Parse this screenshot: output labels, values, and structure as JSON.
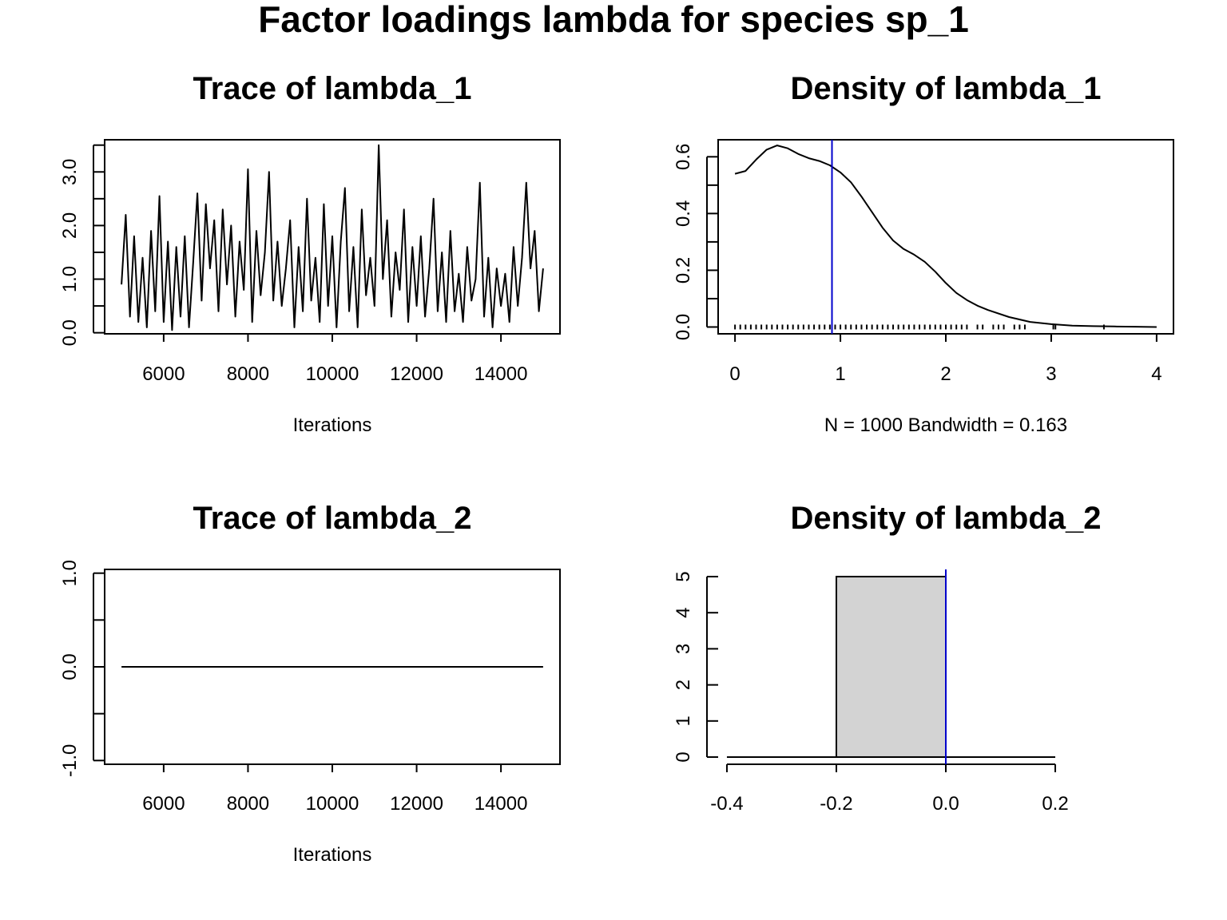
{
  "main_title": "Factor loadings lambda for species  sp_1",
  "colors": {
    "line": "#000000",
    "mean_line": "#0000cc",
    "bar_fill": "#d3d3d3"
  },
  "chart_data": [
    {
      "id": "trace-lambda-1",
      "type": "line",
      "title": "Trace of lambda_1",
      "xlabel": "Iterations",
      "ylabel": "",
      "xlim": [
        4600,
        15400
      ],
      "ylim": [
        -0.02,
        3.6
      ],
      "xticks": [
        6000,
        8000,
        10000,
        12000,
        14000
      ],
      "yticks": [
        0.0,
        0.5,
        1.0,
        1.5,
        2.0,
        2.5,
        3.0,
        3.5
      ],
      "ytick_labels": [
        "0.0",
        "",
        "1.0",
        "",
        "2.0",
        "",
        "3.0",
        ""
      ],
      "grid": false,
      "series": [
        {
          "x": [
            5000,
            5100,
            5200,
            5300,
            5400,
            5500,
            5600,
            5700,
            5800,
            5900,
            6000,
            6100,
            6200,
            6300,
            6400,
            6500,
            6600,
            6700,
            6800,
            6900,
            7000,
            7100,
            7200,
            7300,
            7400,
            7500,
            7600,
            7700,
            7800,
            7900,
            8000,
            8100,
            8200,
            8300,
            8400,
            8500,
            8600,
            8700,
            8800,
            8900,
            9000,
            9100,
            9200,
            9300,
            9400,
            9500,
            9600,
            9700,
            9800,
            9900,
            10000,
            10100,
            10200,
            10300,
            10400,
            10500,
            10600,
            10700,
            10800,
            10900,
            11000,
            11100,
            11200,
            11300,
            11400,
            11500,
            11600,
            11700,
            11800,
            11900,
            12000,
            12100,
            12200,
            12300,
            12400,
            12500,
            12600,
            12700,
            12800,
            12900,
            13000,
            13100,
            13200,
            13300,
            13400,
            13500,
            13600,
            13700,
            13800,
            13900,
            14000,
            14100,
            14200,
            14300,
            14400,
            14500,
            14600,
            14700,
            14800,
            14900,
            15000
          ],
          "y": [
            0.9,
            2.2,
            0.3,
            1.8,
            0.2,
            1.4,
            0.1,
            1.9,
            0.4,
            2.55,
            0.2,
            1.7,
            0.05,
            1.6,
            0.3,
            1.8,
            0.1,
            1.3,
            2.6,
            0.6,
            2.4,
            1.2,
            2.1,
            0.4,
            2.3,
            0.9,
            2.0,
            0.3,
            1.7,
            0.8,
            3.05,
            0.2,
            1.9,
            0.7,
            1.5,
            3.0,
            0.6,
            1.7,
            0.5,
            1.2,
            2.1,
            0.1,
            1.6,
            0.4,
            2.5,
            0.6,
            1.4,
            0.2,
            2.4,
            0.5,
            1.8,
            0.1,
            1.7,
            2.7,
            0.4,
            1.6,
            0.1,
            2.3,
            0.7,
            1.4,
            0.5,
            3.5,
            1.0,
            2.1,
            0.3,
            1.5,
            0.8,
            2.3,
            0.2,
            1.6,
            0.5,
            1.8,
            0.3,
            1.2,
            2.5,
            0.4,
            1.5,
            0.2,
            1.9,
            0.4,
            1.1,
            0.2,
            1.6,
            0.6,
            1.0,
            2.8,
            0.3,
            1.4,
            0.1,
            1.2,
            0.5,
            1.1,
            0.2,
            1.6,
            0.5,
            1.4,
            2.8,
            1.2,
            1.9,
            0.4,
            1.2
          ]
        }
      ]
    },
    {
      "id": "density-lambda-1",
      "type": "line",
      "title": "Density of lambda_1",
      "xlabel": "N = 1000   Bandwidth = 0.163",
      "ylabel": "",
      "xlim": [
        -0.16,
        4.16
      ],
      "ylim": [
        -0.024,
        0.66
      ],
      "xticks": [
        0,
        1,
        2,
        3,
        4
      ],
      "xtick_labels": [
        "0",
        "1",
        "2",
        "3",
        "4"
      ],
      "yticks": [
        0.0,
        0.1,
        0.2,
        0.3,
        0.4,
        0.5,
        0.6
      ],
      "ytick_labels": [
        "0.0",
        "",
        "0.2",
        "",
        "0.4",
        "",
        "0.6"
      ],
      "grid": false,
      "series": [
        {
          "x": [
            0.0,
            0.1,
            0.2,
            0.3,
            0.4,
            0.5,
            0.6,
            0.7,
            0.8,
            0.9,
            1.0,
            1.1,
            1.2,
            1.3,
            1.4,
            1.5,
            1.6,
            1.7,
            1.8,
            1.9,
            2.0,
            2.1,
            2.2,
            2.3,
            2.4,
            2.6,
            2.8,
            3.0,
            3.2,
            3.4,
            3.6,
            3.8,
            4.0
          ],
          "y": [
            0.54,
            0.55,
            0.59,
            0.625,
            0.64,
            0.63,
            0.61,
            0.595,
            0.585,
            0.57,
            0.545,
            0.51,
            0.46,
            0.405,
            0.35,
            0.305,
            0.275,
            0.255,
            0.23,
            0.195,
            0.155,
            0.12,
            0.095,
            0.075,
            0.06,
            0.035,
            0.018,
            0.01,
            0.005,
            0.003,
            0.002,
            0.001,
            0.0
          ]
        }
      ],
      "mean_line": 0.92,
      "rug": [
        0.0,
        0.05,
        0.1,
        0.15,
        0.2,
        0.25,
        0.3,
        0.35,
        0.4,
        0.45,
        0.5,
        0.55,
        0.6,
        0.65,
        0.7,
        0.75,
        0.8,
        0.85,
        0.9,
        0.95,
        1.0,
        1.05,
        1.1,
        1.15,
        1.2,
        1.25,
        1.3,
        1.35,
        1.4,
        1.45,
        1.5,
        1.55,
        1.6,
        1.65,
        1.7,
        1.75,
        1.8,
        1.85,
        1.9,
        1.95,
        2.0,
        2.05,
        2.1,
        2.15,
        2.2,
        2.3,
        2.35,
        2.45,
        2.5,
        2.55,
        2.65,
        2.7,
        2.75,
        3.02,
        3.04,
        3.5
      ]
    },
    {
      "id": "trace-lambda-2",
      "type": "line",
      "title": "Trace of lambda_2",
      "xlabel": "Iterations",
      "ylabel": "",
      "xlim": [
        4600,
        15400
      ],
      "ylim": [
        -1.04,
        1.04
      ],
      "xticks": [
        6000,
        8000,
        10000,
        12000,
        14000
      ],
      "yticks": [
        -1.0,
        -0.5,
        0.0,
        0.5,
        1.0
      ],
      "ytick_labels": [
        "-1.0",
        "",
        "0.0",
        "",
        "1.0"
      ],
      "grid": false,
      "series": [
        {
          "x": [
            5000,
            15000
          ],
          "y": [
            0,
            0
          ]
        }
      ]
    },
    {
      "id": "density-lambda-2",
      "type": "bar",
      "title": "Density of lambda_2",
      "xlabel": "",
      "ylabel": "",
      "xlim": [
        -0.416,
        0.416
      ],
      "ylim": [
        -0.2,
        5.2
      ],
      "xticks": [
        -0.4,
        -0.2,
        0.0,
        0.2
      ],
      "xtick_labels": [
        "-0.4",
        "-0.2",
        "0.0",
        "0.2"
      ],
      "yticks": [
        0,
        1,
        2,
        3,
        4,
        5
      ],
      "ytick_labels": [
        "0",
        "1",
        "2",
        "3",
        "4",
        "5"
      ],
      "grid": false,
      "bars": [
        {
          "x0": -0.2,
          "x1": 0.0,
          "value": 5
        }
      ],
      "baseline": [
        -0.4,
        0.2
      ],
      "mean_line": 0.0
    }
  ]
}
